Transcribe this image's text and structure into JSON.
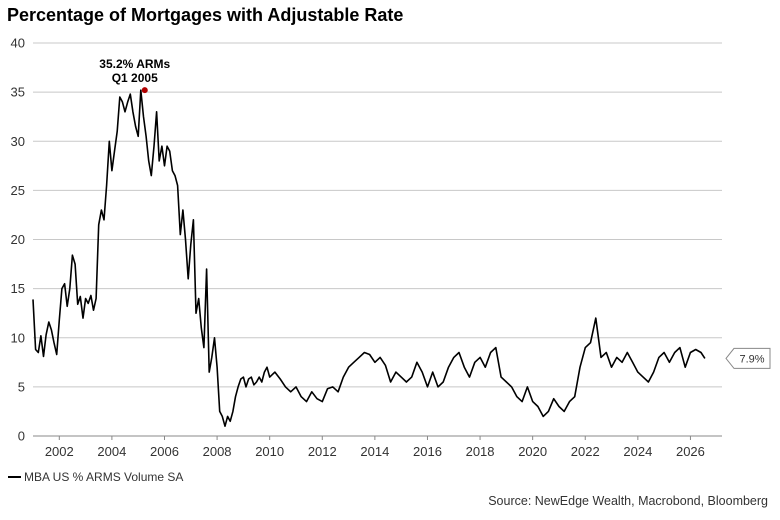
{
  "title": "Percentage of Mortgages with Adjustable Rate",
  "source": "Source: NewEdge Wealth, Macrobond, Bloomberg",
  "legend": {
    "label": "MBA US % ARMS Volume SA",
    "color": "#000000"
  },
  "annotation": {
    "line1": "35.2% ARMs",
    "line2": "Q1 2005",
    "marker_color": "#b00000"
  },
  "last_value_label": "7.9%",
  "chart_data": {
    "type": "line",
    "title": "Percentage of Mortgages with Adjustable Rate",
    "xlabel": "",
    "ylabel": "",
    "xlim": [
      2001.0,
      2027.2
    ],
    "ylim": [
      0,
      40
    ],
    "yticks": [
      "0",
      "5",
      "10",
      "15",
      "20",
      "25",
      "30",
      "35",
      "40"
    ],
    "xticks": [
      "2002",
      "2004",
      "2006",
      "2008",
      "2010",
      "2012",
      "2014",
      "2016",
      "2018",
      "2020",
      "2022",
      "2024",
      "2026"
    ],
    "grid": "horizontal",
    "legend_position": "bottom-left",
    "series": [
      {
        "name": "MBA US % ARMS Volume SA",
        "color": "#000000",
        "x": [
          2001.0,
          2001.1,
          2001.2,
          2001.3,
          2001.4,
          2001.5,
          2001.6,
          2001.7,
          2001.8,
          2001.9,
          2002.0,
          2002.1,
          2002.2,
          2002.3,
          2002.4,
          2002.5,
          2002.6,
          2002.7,
          2002.8,
          2002.9,
          2003.0,
          2003.1,
          2003.2,
          2003.3,
          2003.4,
          2003.5,
          2003.6,
          2003.7,
          2003.8,
          2003.9,
          2004.0,
          2004.1,
          2004.2,
          2004.3,
          2004.4,
          2004.5,
          2004.6,
          2004.7,
          2004.8,
          2004.9,
          2005.0,
          2005.1,
          2005.2,
          2005.3,
          2005.4,
          2005.5,
          2005.6,
          2005.7,
          2005.8,
          2005.9,
          2006.0,
          2006.1,
          2006.2,
          2006.3,
          2006.4,
          2006.5,
          2006.6,
          2006.7,
          2006.8,
          2006.9,
          2007.0,
          2007.1,
          2007.2,
          2007.3,
          2007.4,
          2007.5,
          2007.6,
          2007.7,
          2007.8,
          2007.9,
          2008.0,
          2008.1,
          2008.2,
          2008.3,
          2008.4,
          2008.5,
          2008.6,
          2008.7,
          2008.8,
          2008.9,
          2009.0,
          2009.1,
          2009.2,
          2009.3,
          2009.4,
          2009.5,
          2009.6,
          2009.7,
          2009.8,
          2009.9,
          2010.0,
          2010.2,
          2010.4,
          2010.6,
          2010.8,
          2011.0,
          2011.2,
          2011.4,
          2011.6,
          2011.8,
          2012.0,
          2012.2,
          2012.4,
          2012.6,
          2012.8,
          2013.0,
          2013.2,
          2013.4,
          2013.6,
          2013.8,
          2014.0,
          2014.2,
          2014.4,
          2014.6,
          2014.8,
          2015.0,
          2015.2,
          2015.4,
          2015.6,
          2015.8,
          2016.0,
          2016.2,
          2016.4,
          2016.6,
          2016.8,
          2017.0,
          2017.2,
          2017.4,
          2017.6,
          2017.8,
          2018.0,
          2018.2,
          2018.4,
          2018.6,
          2018.8,
          2019.0,
          2019.2,
          2019.4,
          2019.6,
          2019.8,
          2020.0,
          2020.2,
          2020.4,
          2020.6,
          2020.8,
          2021.0,
          2021.2,
          2021.4,
          2021.6,
          2021.8,
          2022.0,
          2022.2,
          2022.4,
          2022.6,
          2022.8,
          2023.0,
          2023.2,
          2023.4,
          2023.6,
          2023.8,
          2024.0,
          2024.2,
          2024.4,
          2024.6,
          2024.8,
          2025.0,
          2025.2,
          2025.4,
          2025.6,
          2025.8,
          2026.0,
          2026.2,
          2026.4,
          2026.55
        ],
        "y": [
          13.9,
          8.8,
          8.5,
          10.2,
          8.1,
          10.3,
          11.6,
          10.8,
          9.5,
          8.3,
          11.8,
          15.0,
          15.5,
          13.2,
          15.0,
          18.4,
          17.5,
          13.4,
          14.2,
          12.0,
          14.0,
          13.5,
          14.3,
          12.8,
          14.0,
          21.5,
          23.0,
          22.0,
          25.5,
          30.0,
          27.0,
          29.0,
          31.0,
          34.5,
          34.0,
          33.0,
          34.0,
          34.8,
          33.0,
          31.5,
          30.5,
          35.2,
          32.5,
          30.5,
          28.0,
          26.5,
          29.5,
          33.0,
          28.0,
          29.5,
          27.5,
          29.5,
          29.0,
          27.0,
          26.5,
          25.5,
          20.5,
          23.0,
          20.0,
          16.0,
          19.5,
          22.0,
          12.5,
          14.0,
          11.0,
          9.0,
          17.0,
          6.5,
          8.0,
          10.0,
          7.0,
          2.5,
          2.0,
          1.0,
          2.0,
          1.5,
          2.5,
          4.0,
          5.0,
          5.8,
          6.0,
          5.0,
          5.8,
          6.0,
          5.2,
          5.5,
          6.0,
          5.5,
          6.5,
          7.0,
          6.0,
          6.5,
          5.8,
          5.0,
          4.5,
          5.0,
          4.0,
          3.5,
          4.5,
          3.8,
          3.5,
          4.8,
          5.0,
          4.5,
          6.0,
          7.0,
          7.5,
          8.0,
          8.5,
          8.3,
          7.5,
          8.0,
          7.2,
          5.5,
          6.5,
          6.0,
          5.5,
          6.0,
          7.5,
          6.5,
          5.0,
          6.5,
          5.0,
          5.5,
          7.0,
          8.0,
          8.5,
          7.0,
          6.0,
          7.5,
          8.0,
          7.0,
          8.5,
          9.0,
          6.0,
          5.5,
          5.0,
          4.0,
          3.5,
          5.0,
          3.5,
          3.0,
          2.0,
          2.5,
          3.8,
          3.0,
          2.5,
          3.5,
          4.0,
          7.0,
          9.0,
          9.5,
          12.0,
          8.0,
          8.5,
          7.0,
          8.0,
          7.5,
          8.5,
          7.5,
          6.5,
          6.0,
          5.5,
          6.5,
          8.0,
          8.5,
          7.5,
          8.5,
          9.0,
          7.0,
          8.5,
          8.8,
          8.5,
          7.9
        ]
      }
    ],
    "annotations": [
      {
        "text": "35.2% ARMs",
        "x": 2005.25,
        "y": 35.2
      },
      {
        "text": "Q1 2005",
        "x": 2005.25,
        "y": 35.2
      }
    ],
    "last_value": {
      "text": "7.9%",
      "y": 7.9
    }
  }
}
